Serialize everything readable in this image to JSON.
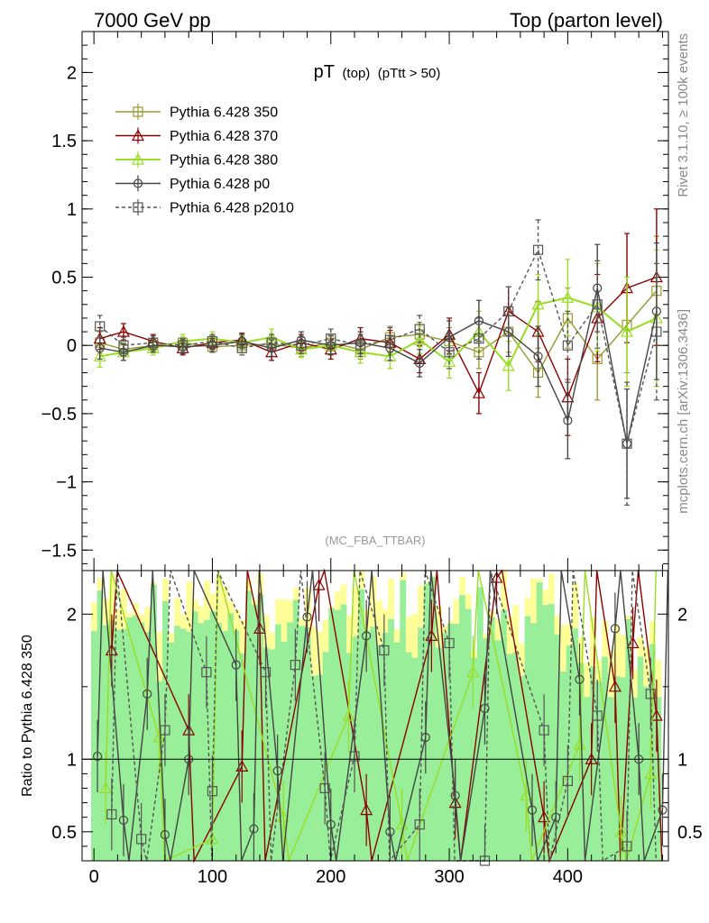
{
  "header": {
    "left": "7000 GeV pp",
    "right": "Top (parton level)"
  },
  "side_labels": {
    "rivet": "Rivet 3.1.10, ≥ 100k events",
    "mcplots": "mcplots.cern.ch [arXiv:1306.3436]"
  },
  "chart_data": [
    {
      "type": "line",
      "title": "pT",
      "title_sub": "(top)",
      "title_cut": "(pTtt > 50)",
      "watermark": "(MC_FBA_TTBAR)",
      "xlabel": "",
      "ylabel": "",
      "xlim": [
        -10,
        485
      ],
      "ylim": [
        -1.65,
        2.3
      ],
      "x_ticks": [
        0,
        100,
        200,
        300,
        400
      ],
      "y_ticks": [
        -1.5,
        -1,
        -0.5,
        0,
        0.5,
        1,
        1.5,
        2
      ],
      "y_tick_labels": [
        "−1.5",
        "−1",
        "−0.5",
        "0",
        "0.5",
        "1",
        "1.5",
        "2"
      ],
      "legend_position": "top-left",
      "series": [
        {
          "name": "Pythia 6.428 350",
          "color": "#999933",
          "marker": "square",
          "dash": "solid",
          "x": [
            5,
            25,
            50,
            75,
            100,
            125,
            150,
            175,
            200,
            225,
            250,
            275,
            300,
            325,
            350,
            375,
            400,
            425,
            450,
            475
          ],
          "y": [
            0.02,
            -0.03,
            0.0,
            0.02,
            -0.01,
            0.0,
            0.01,
            -0.02,
            0.02,
            -0.03,
            0.06,
            0.08,
            0.03,
            -0.05,
            0.1,
            -0.2,
            0.2,
            -0.1,
            0.15,
            0.4
          ],
          "err": [
            0.08,
            0.05,
            0.04,
            0.04,
            0.04,
            0.05,
            0.05,
            0.06,
            0.06,
            0.07,
            0.08,
            0.09,
            0.1,
            0.12,
            0.15,
            0.18,
            0.22,
            0.3,
            0.35,
            0.4
          ]
        },
        {
          "name": "Pythia 6.428 370",
          "color": "#8b0000",
          "marker": "triangle",
          "dash": "solid",
          "x": [
            5,
            25,
            50,
            75,
            100,
            125,
            150,
            175,
            200,
            225,
            250,
            275,
            300,
            325,
            350,
            375,
            400,
            425,
            450,
            475
          ],
          "y": [
            0.05,
            0.1,
            0.03,
            -0.02,
            0.02,
            0.04,
            -0.05,
            0.02,
            -0.03,
            0.05,
            0.02,
            -0.1,
            0.08,
            -0.35,
            0.25,
            0.1,
            -0.38,
            0.2,
            0.42,
            0.5
          ],
          "err": [
            0.08,
            0.06,
            0.05,
            0.05,
            0.05,
            0.05,
            0.06,
            0.06,
            0.07,
            0.08,
            0.09,
            0.1,
            0.12,
            0.15,
            0.18,
            0.22,
            0.28,
            0.32,
            0.4,
            0.5
          ]
        },
        {
          "name": "Pythia 6.428 380",
          "color": "#99dd22",
          "marker": "triangle",
          "dash": "solid",
          "x": [
            5,
            25,
            50,
            75,
            100,
            125,
            150,
            175,
            200,
            225,
            250,
            275,
            300,
            325,
            350,
            375,
            400,
            425,
            450,
            475
          ],
          "y": [
            -0.08,
            -0.05,
            -0.02,
            0.03,
            0.05,
            0.02,
            0.06,
            -0.03,
            0.0,
            -0.05,
            -0.08,
            0.04,
            -0.12,
            0.1,
            -0.15,
            0.3,
            0.35,
            0.28,
            0.1,
            0.2
          ],
          "err": [
            0.08,
            0.06,
            0.05,
            0.05,
            0.05,
            0.05,
            0.06,
            0.06,
            0.07,
            0.08,
            0.09,
            0.1,
            0.12,
            0.15,
            0.18,
            0.22,
            0.28,
            0.32,
            0.4,
            0.5
          ]
        },
        {
          "name": "Pythia 6.428 p0",
          "color": "#444444",
          "marker": "circle",
          "dash": "solid",
          "x": [
            5,
            25,
            50,
            75,
            100,
            125,
            150,
            175,
            200,
            225,
            250,
            275,
            300,
            325,
            350,
            375,
            400,
            425,
            450,
            475
          ],
          "y": [
            -0.02,
            -0.05,
            0.0,
            -0.01,
            0.0,
            0.03,
            -0.02,
            0.04,
            0.0,
            0.02,
            -0.02,
            -0.13,
            0.06,
            0.18,
            0.1,
            -0.08,
            -0.55,
            0.42,
            -0.72,
            0.25
          ],
          "err": [
            0.08,
            0.06,
            0.05,
            0.05,
            0.05,
            0.05,
            0.06,
            0.06,
            0.07,
            0.08,
            0.09,
            0.1,
            0.12,
            0.15,
            0.18,
            0.22,
            0.28,
            0.32,
            0.4,
            0.5
          ]
        },
        {
          "name": "Pythia 6.428 p2010",
          "color": "#555555",
          "marker": "square",
          "dash": "dashed",
          "x": [
            5,
            25,
            50,
            75,
            100,
            125,
            150,
            175,
            200,
            225,
            250,
            275,
            300,
            325,
            350,
            375,
            400,
            425,
            450,
            475
          ],
          "y": [
            0.14,
            0.0,
            0.02,
            0.0,
            0.03,
            -0.02,
            0.02,
            0.0,
            0.05,
            0.0,
            0.04,
            0.12,
            -0.05,
            0.05,
            0.25,
            0.7,
            0.0,
            0.3,
            -0.72,
            0.1
          ],
          "err": [
            0.08,
            0.06,
            0.05,
            0.05,
            0.05,
            0.05,
            0.06,
            0.06,
            0.07,
            0.08,
            0.09,
            0.1,
            0.12,
            0.15,
            0.18,
            0.22,
            0.25,
            0.32,
            0.45,
            0.5
          ]
        }
      ]
    },
    {
      "type": "line",
      "title": "",
      "ylabel": "Ratio to Pythia 6.428 350",
      "xlim": [
        -10,
        485
      ],
      "ylim": [
        0.3,
        2.3
      ],
      "x_ticks": [
        0,
        100,
        200,
        300,
        400
      ],
      "x_tick_labels": [
        "0",
        "100",
        "200",
        "300",
        "400"
      ],
      "y_ticks": [
        0.5,
        1,
        2
      ],
      "y_tick_labels": [
        "0.5",
        "1",
        "2"
      ],
      "reference_line": 1,
      "band_colors": [
        "#ffff99",
        "#99ee99"
      ],
      "series": [
        {
          "name": "Pythia 6.428 370",
          "color": "#8b0000",
          "marker": "triangle",
          "x": [
            15,
            80,
            125,
            140,
            190,
            230,
            285,
            305,
            340,
            380,
            420,
            440,
            455,
            475
          ],
          "y": [
            1.75,
            1.2,
            0.95,
            1.9,
            2.2,
            0.65,
            1.85,
            0.7,
            2.25,
            0.6,
            1.0,
            1.5,
            1.8,
            1.3
          ]
        },
        {
          "name": "Pythia 6.428 380",
          "color": "#99dd22",
          "marker": "triangle",
          "x": [
            10,
            55,
            100,
            160,
            215,
            260,
            320,
            365,
            410,
            445,
            470
          ],
          "y": [
            0.8,
            1.15,
            0.45,
            0.6,
            1.3,
            0.55,
            1.6,
            0.75,
            1.1,
            0.5,
            0.9
          ]
        },
        {
          "name": "Pythia 6.428 p0",
          "color": "#444444",
          "marker": "circle",
          "x": [
            3,
            25,
            45,
            60,
            80,
            120,
            135,
            155,
            180,
            200,
            230,
            250,
            280,
            305,
            330,
            370,
            390,
            410,
            440,
            460,
            480
          ],
          "y": [
            1.02,
            0.58,
            1.45,
            0.48,
            1.0,
            1.65,
            0.52,
            0.92,
            1.98,
            0.55,
            1.85,
            0.5,
            1.15,
            0.75,
            1.35,
            0.65,
            0.6,
            1.55,
            1.9,
            1.0,
            0.65
          ]
        },
        {
          "name": "Pythia 6.428 p2010",
          "color": "#555555",
          "marker": "square",
          "dash": "dashed",
          "x": [
            15,
            40,
            60,
            95,
            100,
            145,
            170,
            195,
            220,
            245,
            275,
            300,
            330,
            380,
            400,
            425,
            450,
            470
          ],
          "y": [
            0.62,
            0.45,
            1.2,
            1.6,
            0.78,
            1.6,
            1.65,
            0.8,
            1.02,
            1.75,
            0.55,
            1.8,
            0.3,
            1.2,
            0.85,
            1.3,
            0.4,
            1.45
          ]
        }
      ]
    }
  ]
}
